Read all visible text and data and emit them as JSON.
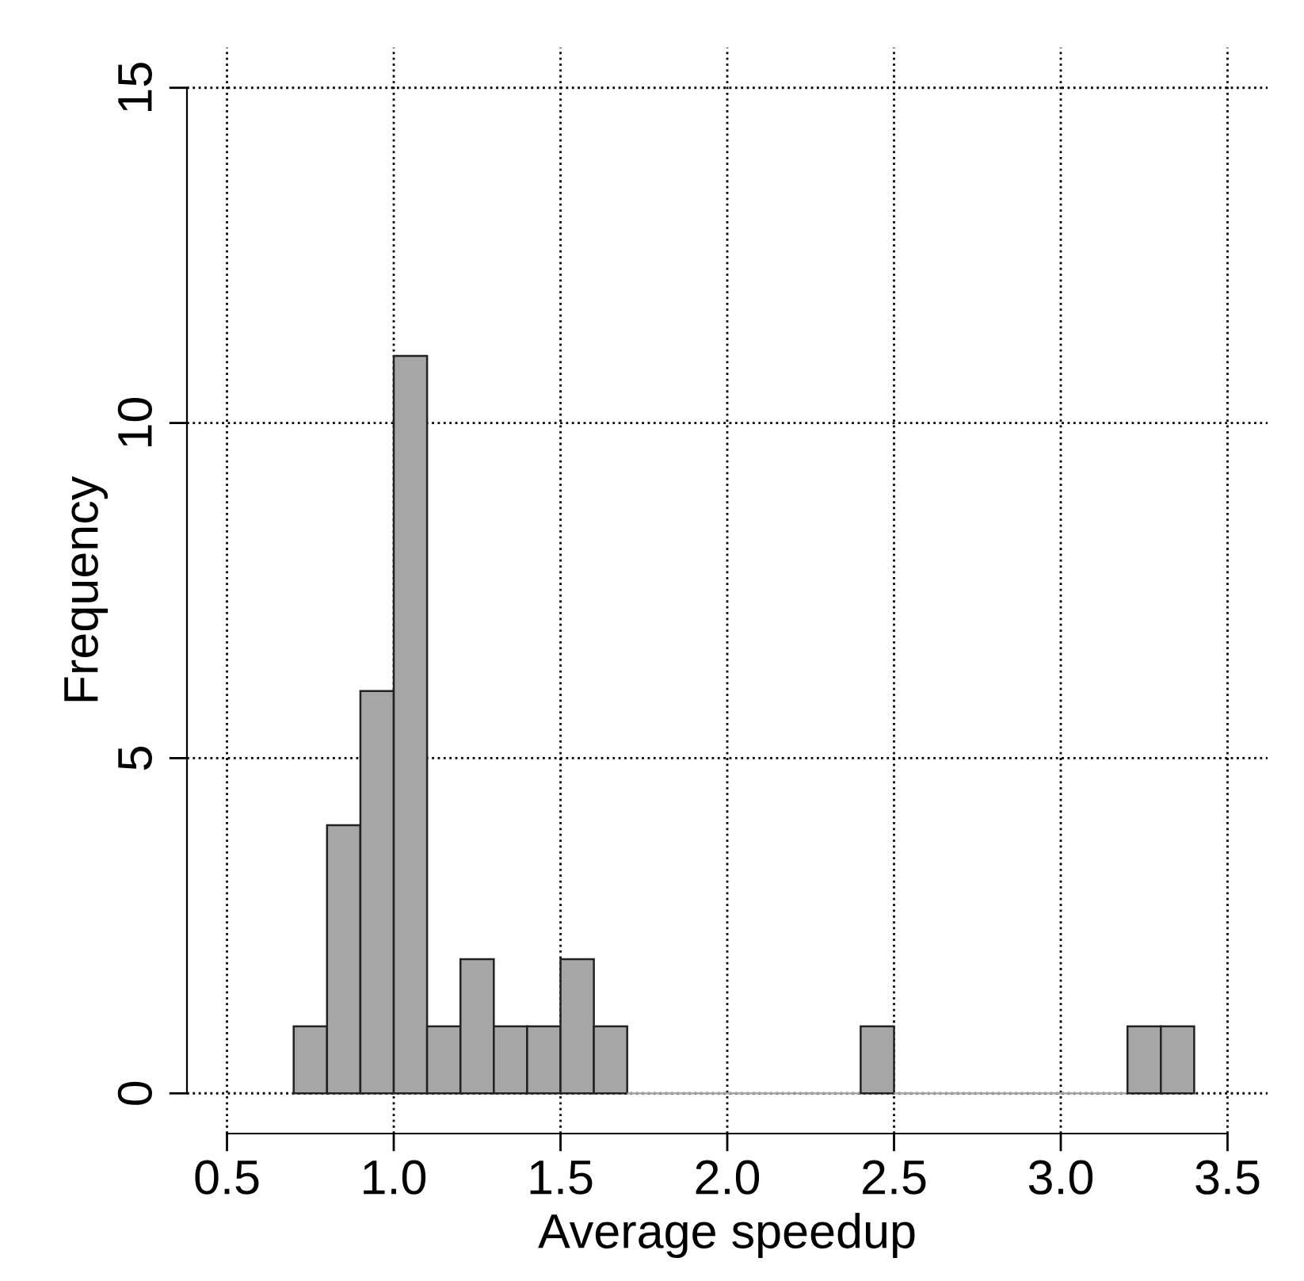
{
  "chart_data": {
    "type": "histogram",
    "xlabel": "Average speedup",
    "ylabel": "Frequency",
    "bins": [
      0.7,
      0.8,
      0.9,
      1.0,
      1.1,
      1.2,
      1.3,
      1.4,
      1.5,
      1.6,
      1.7,
      1.8,
      1.9,
      2.0,
      2.1,
      2.2,
      2.3,
      2.4,
      2.5,
      2.6,
      2.7,
      2.8,
      2.9,
      3.0,
      3.1,
      3.2,
      3.3,
      3.4
    ],
    "values": [
      1,
      4,
      6,
      11,
      1,
      2,
      1,
      1,
      2,
      1,
      0,
      0,
      0,
      0,
      0,
      0,
      0,
      1,
      0,
      0,
      0,
      0,
      0,
      0,
      0,
      1,
      1
    ],
    "color": "#a6a6a6",
    "xlim": [
      0.38,
      3.62
    ],
    "ylim": [
      -0.6,
      15.6
    ],
    "xticks": [
      {
        "value": 0.5,
        "label": "0.5"
      },
      {
        "value": 1.0,
        "label": "1.0"
      },
      {
        "value": 1.5,
        "label": "1.5"
      },
      {
        "value": 2.0,
        "label": "2.0"
      },
      {
        "value": 2.5,
        "label": "2.5"
      },
      {
        "value": 3.0,
        "label": "3.0"
      },
      {
        "value": 3.5,
        "label": "3.5"
      }
    ],
    "yticks": [
      0,
      5,
      10,
      15
    ],
    "grid": true,
    "line_style": "dotted"
  }
}
